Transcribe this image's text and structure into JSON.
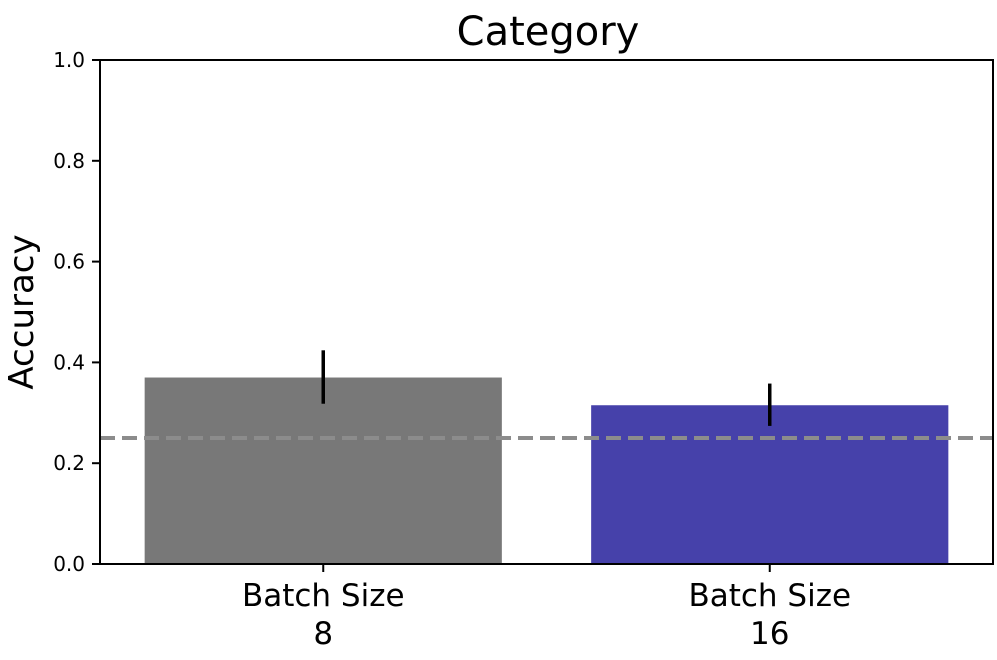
{
  "chart_data": {
    "type": "bar",
    "title": "Category",
    "xlabel": "",
    "ylabel": "Accuracy",
    "ylim": [
      0,
      1.0
    ],
    "yticks": [
      "0.0",
      "0.2",
      "0.4",
      "0.6",
      "0.8",
      "1.0"
    ],
    "categories": [
      [
        "Batch Size",
        "8"
      ],
      [
        "Batch Size",
        "16"
      ]
    ],
    "values": [
      0.37,
      0.315
    ],
    "errors": [
      [
        0.318,
        0.424
      ],
      [
        0.274,
        0.358
      ]
    ],
    "bar_colors": [
      "#787878",
      "#4641aa"
    ],
    "chance_line": 0.25,
    "chance_line_color": "#8c8c8c",
    "grid": false
  }
}
